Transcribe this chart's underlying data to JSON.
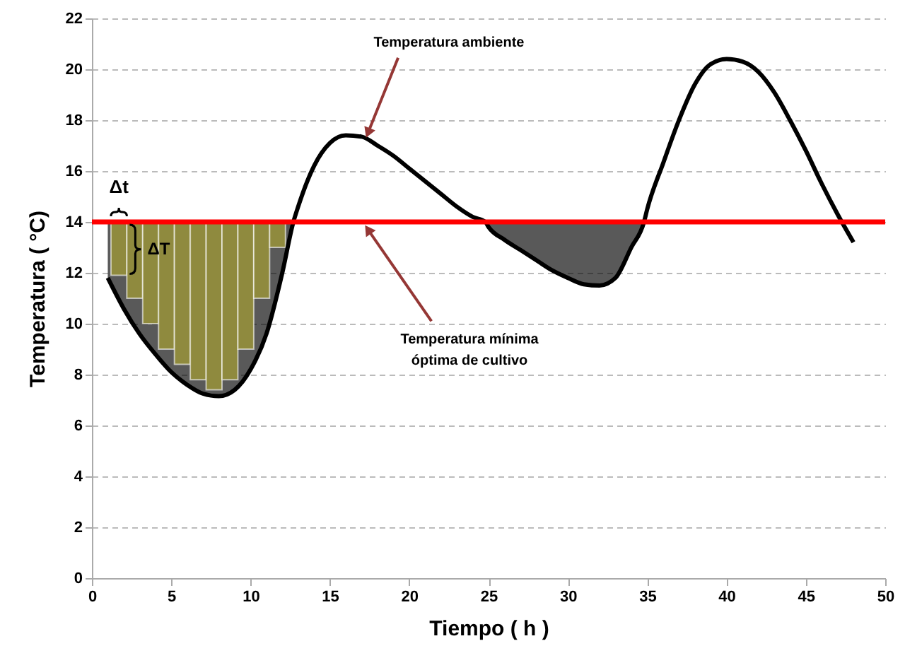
{
  "chart_data": {
    "type": "line",
    "xlabel": "Tiempo  ( h )",
    "ylabel": "Temperatura   ( °C)",
    "xlim": [
      0,
      50
    ],
    "xticks": [
      0,
      5,
      10,
      15,
      20,
      25,
      30,
      35,
      40,
      45,
      50
    ],
    "ylim": [
      0,
      22
    ],
    "yticks": [
      0,
      2,
      4,
      6,
      8,
      10,
      12,
      14,
      16,
      18,
      20,
      22
    ],
    "grid": "y",
    "marker": "none",
    "series": [
      {
        "type": "bar",
        "color": "#8f8a3e",
        "x": [
          1.7,
          2.7,
          3.7,
          4.7,
          5.7,
          6.7,
          7.7,
          8.7,
          9.7,
          10.7,
          11.7
        ],
        "base": [
          11.9,
          11.0,
          10.0,
          9.0,
          8.4,
          7.8,
          7.4,
          7.8,
          9.0,
          11.0,
          13.0
        ],
        "values": [
          2.1,
          3.0,
          4.0,
          5.0,
          5.6,
          6.2,
          6.6,
          6.2,
          5.0,
          3.0,
          1.0
        ]
      },
      {
        "color": "#000000",
        "line_style": "solid",
        "x": [
          1,
          2,
          3,
          4,
          5,
          6,
          7,
          8,
          9,
          10,
          11,
          12,
          12.7,
          13,
          14,
          15,
          16,
          17,
          18,
          19,
          20,
          21,
          22,
          23,
          24,
          24.8,
          25,
          26,
          27,
          28,
          29,
          30,
          31,
          32,
          33,
          34,
          34.8,
          35,
          36,
          37,
          38,
          39,
          40,
          41,
          42,
          43,
          44,
          45,
          46,
          47,
          48
        ],
        "values": [
          11.8,
          10.6,
          9.6,
          8.8,
          8.1,
          7.6,
          7.25,
          7.15,
          7.4,
          8.2,
          9.6,
          12.0,
          14,
          14.6,
          16.2,
          17.1,
          17.4,
          17.35,
          17.0,
          16.6,
          16.1,
          15.6,
          15.1,
          14.6,
          14.2,
          14,
          13.8,
          13.3,
          12.9,
          12.5,
          12.1,
          11.8,
          11.55,
          11.5,
          11.8,
          13.0,
          14,
          14.5,
          16.3,
          18.0,
          19.4,
          20.2,
          20.4,
          20.3,
          19.9,
          19.1,
          18.0,
          16.8,
          15.5,
          14.3,
          13.2
        ],
        "lower": [
          11.8,
          10.6,
          9.6,
          8.8,
          8.1,
          7.6,
          7.25,
          7.15,
          7.4,
          8.2,
          9.6,
          12.0,
          14,
          null,
          null,
          null,
          null,
          null,
          null,
          null,
          null,
          null,
          null,
          null,
          null,
          14,
          13.8,
          13.3,
          12.9,
          12.5,
          12.1,
          11.8,
          11.55,
          11.5,
          11.8,
          13.0,
          14,
          null,
          null,
          null,
          null,
          null,
          null,
          null,
          null,
          null,
          null,
          null,
          null,
          null,
          null
        ],
        "upper": [
          14,
          14,
          14,
          14,
          14,
          14,
          14,
          14,
          14,
          14,
          14,
          14,
          14,
          null,
          null,
          null,
          null,
          null,
          null,
          null,
          null,
          null,
          null,
          null,
          null,
          14,
          14,
          14,
          14,
          14,
          14,
          14,
          14,
          14,
          14,
          14,
          14,
          null,
          null,
          null,
          null,
          null,
          null,
          null,
          null,
          null,
          null,
          null,
          null,
          null,
          null
        ]
      }
    ],
    "ref_lines": [
      {
        "axis": "y",
        "value": 14,
        "color": "#ff0000",
        "line_style": "solid",
        "label": "Temperatura mínima\nóptima de cultivo"
      }
    ],
    "annotations": [
      {
        "text": "Temperatura ambiente",
        "x": 17,
        "y": 17.35
      },
      {
        "text": "Δt",
        "x": 1.7,
        "y": 14
      },
      {
        "text": "ΔT",
        "x": 2.2,
        "y": 12.95
      }
    ]
  }
}
